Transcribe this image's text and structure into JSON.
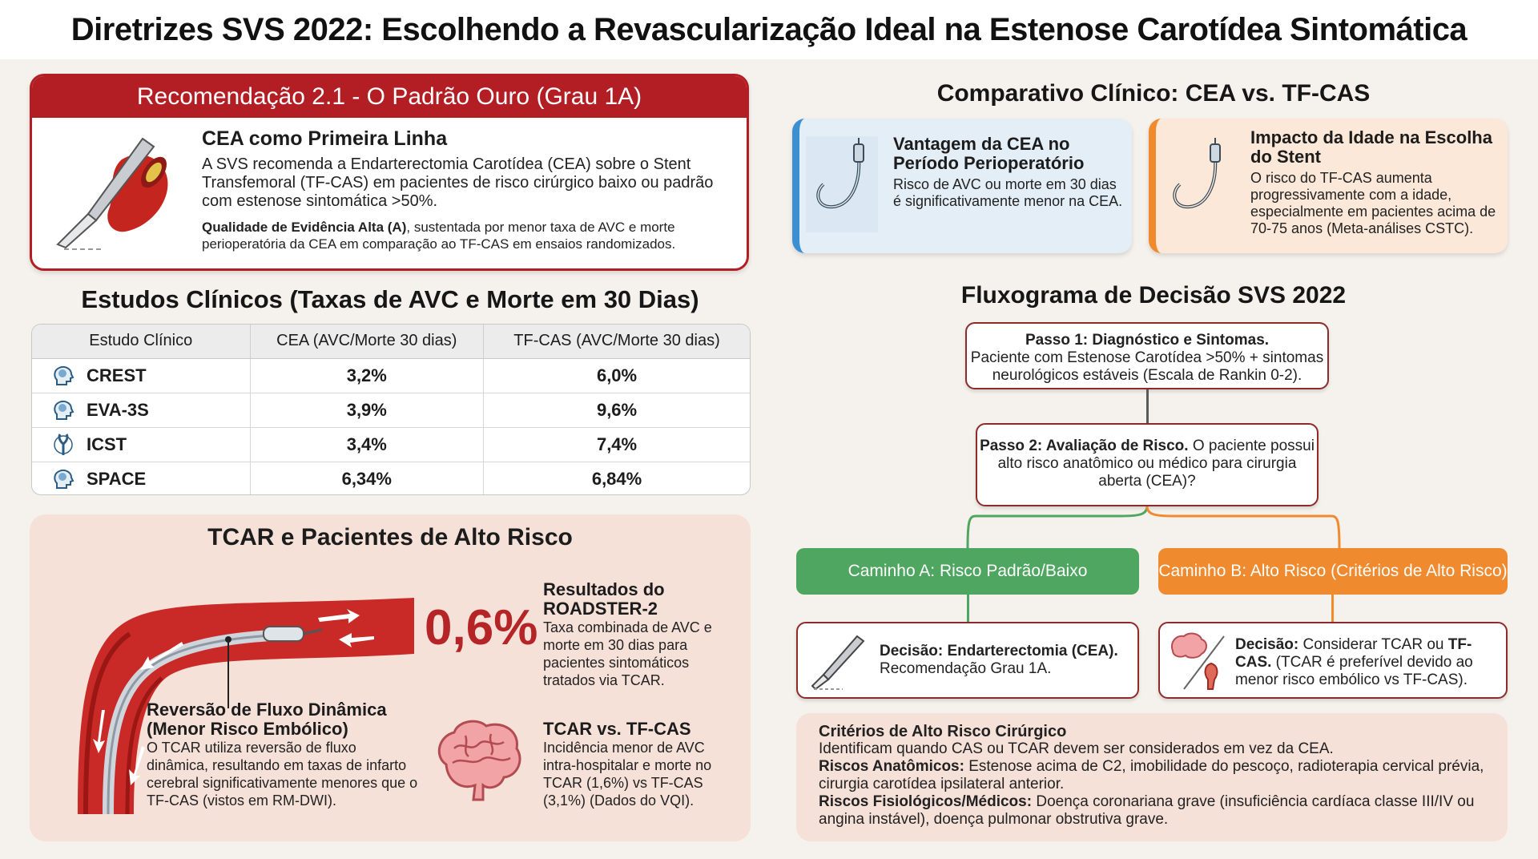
{
  "title": "Diretrizes SVS 2022: Escolhendo a Revascularização Ideal na Estenose Carotídea Sintomática",
  "recommendation": {
    "header": "Recomendação 2.1 - O Padrão Ouro (Grau 1A)",
    "heading": "CEA como Primeira Linha",
    "body": "A SVS recomenda a Endarterectomia Carotídea (CEA) sobre o Stent Transfemoral (TF-CAS) em pacientes de risco cirúrgico baixo ou padrão com estenose sintomática >50%.",
    "evidence_label": "Qualidade de Evidência Alta (A)",
    "evidence_text": ", sustentada por menor taxa de AVC e morte perioperatória da CEA em comparação ao TF-CAS em ensaios randomizados."
  },
  "studies": {
    "title": "Estudos Clínicos (Taxas de AVC e Morte em 30 Dias)",
    "headers": [
      "Estudo Clínico",
      "CEA (AVC/Morte 30 dias)",
      "TF-CAS (AVC/Morte 30 dias)"
    ],
    "rows": [
      {
        "name": "CREST",
        "cea": "3,2%",
        "tfcas": "6,0%",
        "icon": "head-brain-icon"
      },
      {
        "name": "EVA-3S",
        "cea": "3,9%",
        "tfcas": "9,6%",
        "icon": "head-brain-icon"
      },
      {
        "name": "ICST",
        "cea": "3,4%",
        "tfcas": "7,4%",
        "icon": "carotid-artery-icon"
      },
      {
        "name": "SPACE",
        "cea": "6,34%",
        "tfcas": "6,84%",
        "icon": "head-brain-icon"
      }
    ]
  },
  "tcar": {
    "title": "TCAR e Pacientes de Alto Risco",
    "reversal_heading": "Reversão de Fluxo Dinâmica (Menor Risco Embólico)",
    "reversal_text": "O TCAR utiliza reversão de fluxo dinâmica, resultando em taxas de infarto cerebral significativamente menores que o TF-CAS (vistos em RM-DWI).",
    "stat": "0,6%",
    "roadster_heading": "Resultados do ROADSTER-2",
    "roadster_text": "Taxa combinada de AVC e morte em 30 dias para pacientes sintomáticos tratados via TCAR.",
    "vs_heading": "TCAR vs. TF-CAS",
    "vs_text": "Incidência menor de AVC intra-hospitalar e morte no TCAR (1,6%) vs TF-CAS (3,1%) (Dados do VQI)."
  },
  "comparison": {
    "title": "Comparativo Clínico: CEA vs. TF-CAS",
    "card1_heading": "Vantagem da CEA no Período Perioperatório",
    "card1_text": "Risco de AVC ou morte em 30 dias é significativamente menor na CEA.",
    "card2_heading": "Impacto da Idade na Escolha do Stent",
    "card2_text": "O risco do TF-CAS aumenta progressivamente com a idade, especialmente em pacientes acima de 70-75 anos (Meta-análises CSTC)."
  },
  "flow": {
    "title": "Fluxograma de Decisão SVS 2022",
    "step1_bold": "Passo 1: Diagnóstico e Sintomas.",
    "step1_text": "Paciente com Estenose Carotídea >50% + sintomas neurológicos estáveis (Escala de Rankin 0-2).",
    "step2_bold": "Passo 2: Avaliação de Risco.",
    "step2_text": " O paciente possui alto risco anatômico ou médico para cirurgia aberta (CEA)?",
    "path_a": "Caminho A: Risco Padrão/Baixo",
    "path_b": "Caminho B: Alto Risco (Critérios de Alto Risco)",
    "decision_a_bold": "Decisão: Endarterectomia (CEA).",
    "decision_a_text": "Recomendação Grau 1A.",
    "decision_b_bold1": "Decisão:",
    "decision_b_text1": " Considerar TCAR ou ",
    "decision_b_bold2": "TF-CAS.",
    "decision_b_text2": " (TCAR é preferível devido ao menor risco embólico vs TF-CAS)."
  },
  "criteria": {
    "heading": "Critérios de Alto Risco Cirúrgico",
    "intro": "Identificam quando CAS ou TCAR devem ser considerados em vez da CEA.",
    "anat_label": "Riscos Anatômicos:",
    "anat_text": " Estenose acima de C2, imobilidade do pescoço, radioterapia cervical prévia, cirurgia carotídea ipsilateral anterior.",
    "phys_label": "Riscos Fisiológicos/Médicos:",
    "phys_text": " Doença coronariana grave (insuficiência cardíaca classe III/IV ou angina instável), doença pulmonar obstrutiva grave."
  },
  "colors": {
    "accent_red": "#b31e24",
    "path_green": "#4fa660",
    "path_orange": "#ef8a2f",
    "card_blue": "#3c8fd0"
  }
}
